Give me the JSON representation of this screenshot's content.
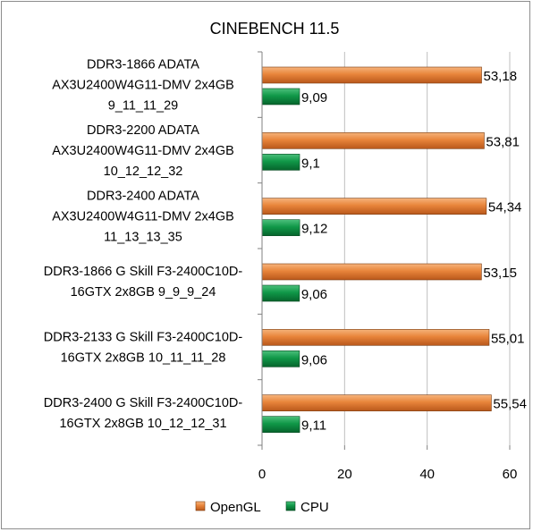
{
  "chart_data": {
    "type": "bar",
    "orientation": "horizontal",
    "title": "CINEBENCH 11.5",
    "categories": [
      [
        "DDR3-1866 ADATA",
        "AX3U2400W4G11-DMV 2x4GB",
        "9_11_11_29"
      ],
      [
        "DDR3-2200 ADATA",
        "AX3U2400W4G11-DMV 2x4GB",
        "10_12_12_32"
      ],
      [
        "DDR3-2400 ADATA",
        "AX3U2400W4G11-DMV 2x4GB",
        "11_13_13_35"
      ],
      [
        "DDR3-1866 G Skill F3-2400C10D-",
        "16GTX 2x8GB 9_9_9_24"
      ],
      [
        "DDR3-2133 G Skill F3-2400C10D-",
        "16GTX 2x8GB 10_11_11_28"
      ],
      [
        "DDR3-2400 G Skill F3-2400C10D-",
        "16GTX 2x8GB 10_12_12_31"
      ]
    ],
    "series": [
      {
        "name": "OpenGL",
        "color": "#e8843a",
        "values": [
          53.18,
          53.81,
          54.34,
          53.15,
          55.01,
          55.54
        ],
        "labels": [
          "53,18",
          "53,81",
          "54,34",
          "53,15",
          "55,01",
          "55,54"
        ]
      },
      {
        "name": "CPU",
        "color": "#109848",
        "values": [
          9.09,
          9.1,
          9.12,
          9.06,
          9.06,
          9.11
        ],
        "labels": [
          "9,09",
          "9,1",
          "9,12",
          "9,06",
          "9,06",
          "9,11"
        ]
      }
    ],
    "xlim": [
      0,
      60
    ],
    "xticks": [
      "0",
      "20",
      "40",
      "60"
    ],
    "grid": true,
    "legend_position": "bottom"
  }
}
